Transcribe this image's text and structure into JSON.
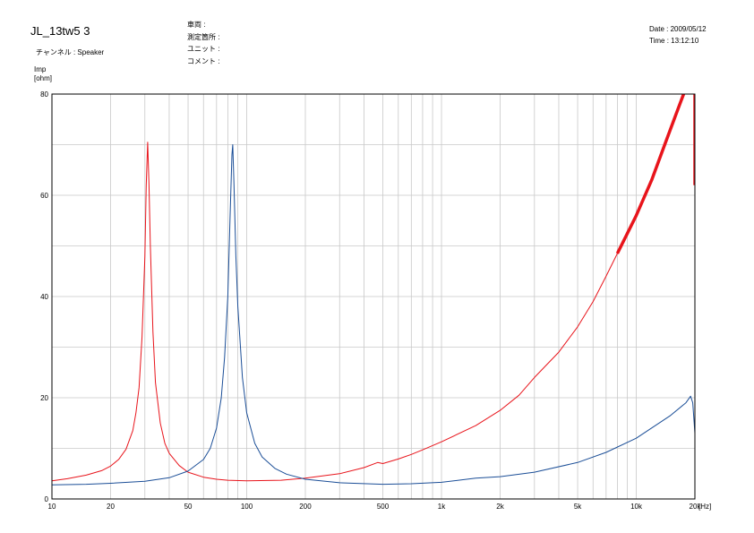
{
  "header": {
    "title": "JL_13tw5 3",
    "channel": "チャンネル : Speaker",
    "vehicle_label": "車両 :",
    "measure_point_label": "測定箇所 :",
    "unit_label": "ユニット :",
    "comment_label": "コメント :",
    "date": "Date : 2009/05/12",
    "time": "Time : 13:12:10"
  },
  "colors": {
    "series1": "#e8141b",
    "series2": "#1b4e97",
    "grid": "#c8c8c8",
    "frame": "#000000"
  },
  "chart_data": {
    "type": "line",
    "title": "",
    "xlabel": "[Hz]",
    "ylabel": "Imp",
    "yunit": "[ohm]",
    "xscale": "log",
    "xlim": [
      10,
      20000
    ],
    "ylim": [
      0,
      80
    ],
    "grid": true,
    "x_ticks": [
      {
        "v": 10,
        "label": "10"
      },
      {
        "v": 20,
        "label": "20"
      },
      {
        "v": 50,
        "label": "50"
      },
      {
        "v": 100,
        "label": "100"
      },
      {
        "v": 200,
        "label": "200"
      },
      {
        "v": 500,
        "label": "500"
      },
      {
        "v": 1000,
        "label": "1k"
      },
      {
        "v": 2000,
        "label": "2k"
      },
      {
        "v": 5000,
        "label": "5k"
      },
      {
        "v": 10000,
        "label": "10k"
      },
      {
        "v": 20000,
        "label": "20k"
      }
    ],
    "y_ticks": [
      {
        "v": 0,
        "label": "0"
      },
      {
        "v": 20,
        "label": "20"
      },
      {
        "v": 40,
        "label": "40"
      },
      {
        "v": 60,
        "label": "60"
      },
      {
        "v": 80,
        "label": "80"
      }
    ],
    "series": [
      {
        "color": "#e8141b",
        "points": [
          [
            10,
            3.6
          ],
          [
            12,
            4.0
          ],
          [
            15,
            4.7
          ],
          [
            18,
            5.6
          ],
          [
            20,
            6.5
          ],
          [
            22,
            7.8
          ],
          [
            24,
            9.8
          ],
          [
            26,
            13.5
          ],
          [
            27,
            17
          ],
          [
            28,
            22
          ],
          [
            29,
            32
          ],
          [
            30,
            48
          ],
          [
            30.5,
            62
          ],
          [
            31,
            70.5
          ],
          [
            31.5,
            62
          ],
          [
            32,
            50
          ],
          [
            33,
            33
          ],
          [
            34,
            23
          ],
          [
            36,
            15
          ],
          [
            38,
            11
          ],
          [
            40,
            9
          ],
          [
            45,
            6.6
          ],
          [
            50,
            5.3
          ],
          [
            60,
            4.3
          ],
          [
            70,
            3.9
          ],
          [
            80,
            3.7
          ],
          [
            100,
            3.6
          ],
          [
            150,
            3.7
          ],
          [
            200,
            4.1
          ],
          [
            300,
            5.0
          ],
          [
            400,
            6.2
          ],
          [
            470,
            7.2
          ],
          [
            500,
            7.0
          ],
          [
            600,
            7.9
          ],
          [
            700,
            8.8
          ],
          [
            800,
            9.7
          ],
          [
            1000,
            11.3
          ],
          [
            1500,
            14.5
          ],
          [
            2000,
            17.5
          ],
          [
            2500,
            20.5
          ],
          [
            3000,
            24.0
          ],
          [
            4000,
            29.0
          ],
          [
            5000,
            34.0
          ],
          [
            6000,
            39.0
          ],
          [
            7000,
            44.0
          ],
          [
            8000,
            48.5
          ],
          [
            10000,
            56.0
          ],
          [
            12000,
            63.0
          ],
          [
            14000,
            70.0
          ],
          [
            16000,
            76.0
          ],
          [
            17500,
            80.0
          ]
        ]
      },
      {
        "color": "#1b4e97",
        "points": [
          [
            10,
            2.8
          ],
          [
            15,
            2.9
          ],
          [
            20,
            3.1
          ],
          [
            30,
            3.5
          ],
          [
            40,
            4.2
          ],
          [
            50,
            5.5
          ],
          [
            60,
            7.8
          ],
          [
            65,
            10
          ],
          [
            70,
            14
          ],
          [
            74,
            20
          ],
          [
            77,
            28
          ],
          [
            80,
            40
          ],
          [
            82,
            55
          ],
          [
            84,
            68
          ],
          [
            84.8,
            70
          ],
          [
            86,
            62
          ],
          [
            88,
            48
          ],
          [
            90,
            38
          ],
          [
            95,
            24
          ],
          [
            100,
            17
          ],
          [
            110,
            11
          ],
          [
            120,
            8.3
          ],
          [
            140,
            6.0
          ],
          [
            160,
            4.9
          ],
          [
            200,
            3.9
          ],
          [
            300,
            3.2
          ],
          [
            500,
            2.9
          ],
          [
            700,
            3.0
          ],
          [
            1000,
            3.3
          ],
          [
            1500,
            4.1
          ],
          [
            2000,
            4.4
          ],
          [
            3000,
            5.3
          ],
          [
            5000,
            7.2
          ],
          [
            7000,
            9.2
          ],
          [
            10000,
            12.0
          ],
          [
            15000,
            16.5
          ],
          [
            18000,
            19.0
          ],
          [
            19000,
            20.3
          ],
          [
            19500,
            19.0
          ],
          [
            20000,
            13.0
          ]
        ]
      }
    ]
  }
}
